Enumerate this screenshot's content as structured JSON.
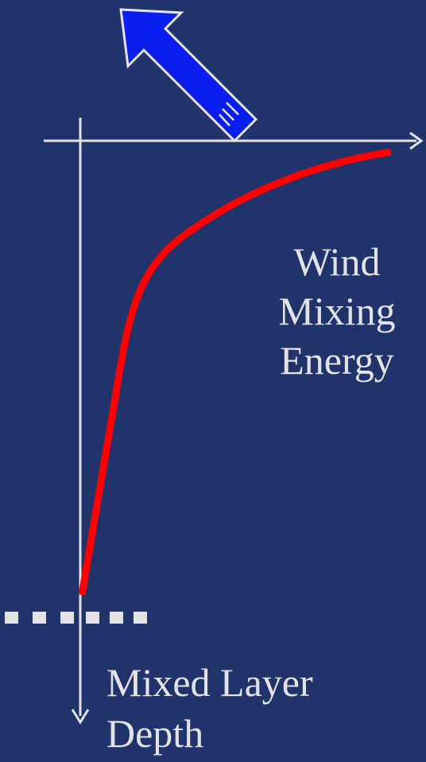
{
  "diagram": {
    "background_color": "#21336b",
    "axis_color": "#e3e3e6",
    "curve_color": "#ff0000",
    "arrow_fill_color": "#0a1ef0",
    "arrow_outline_color": "#e3e3e6",
    "mixed_layer_marker_color": "#e3e3e6"
  },
  "labels": {
    "energy_line1": "Wind",
    "energy_line2": "Mixing",
    "energy_line3": "Energy",
    "depth_line1": "Mixed Layer",
    "depth_line2": "Depth"
  },
  "icons": {
    "wind_arrow": "wind-direction-arrow-icon"
  }
}
